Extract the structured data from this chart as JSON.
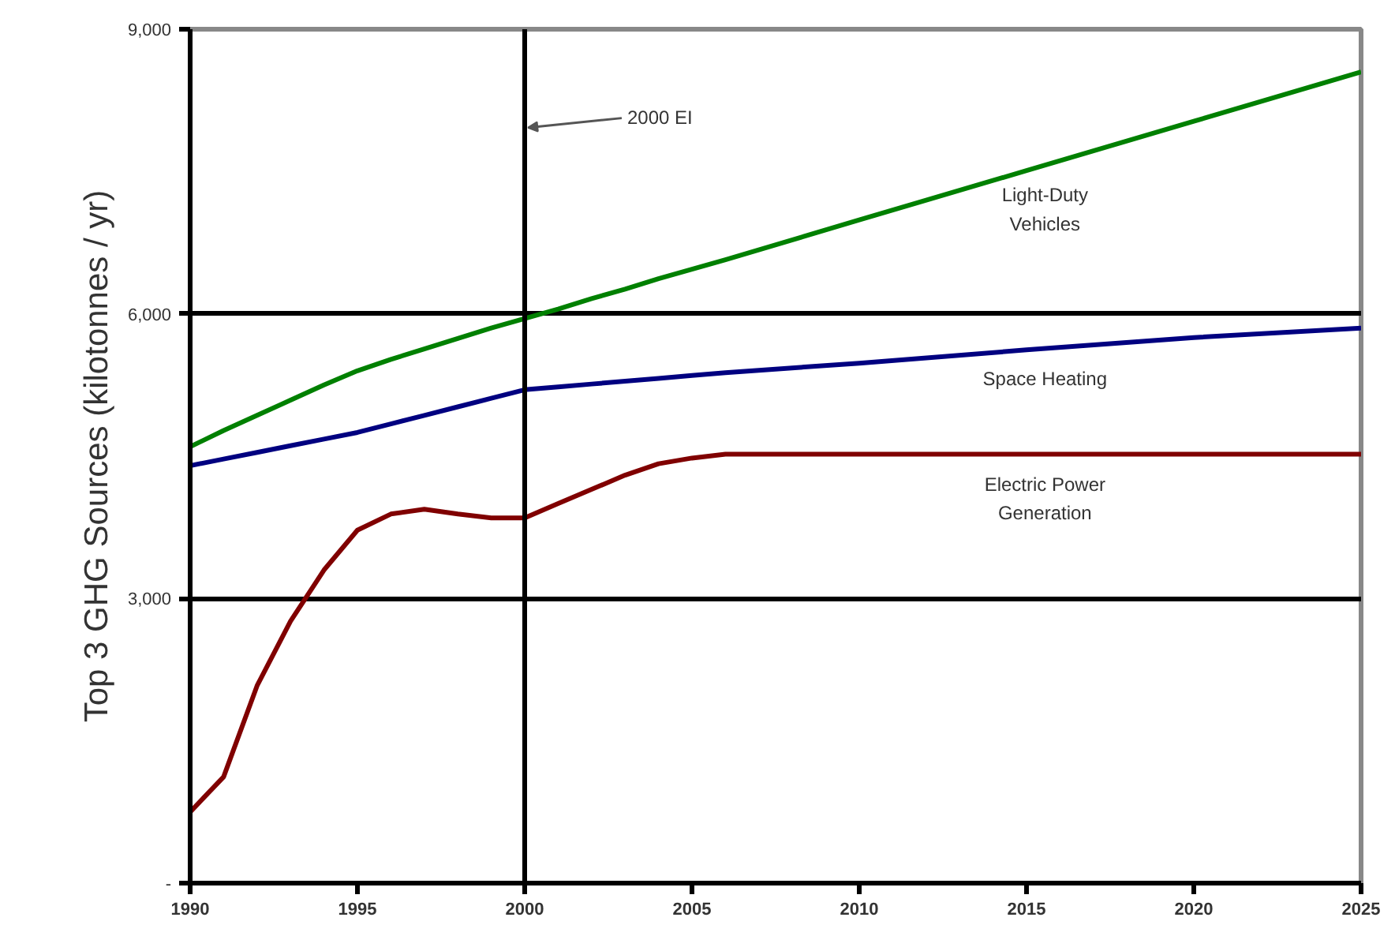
{
  "chart_data": {
    "type": "line",
    "ylabel": "Top 3 GHG Sources (kilotonnes / yr)",
    "x": [
      1990,
      1991,
      1992,
      1993,
      1994,
      1995,
      1996,
      1997,
      1998,
      1999,
      2000,
      2001,
      2002,
      2003,
      2004,
      2005,
      2006,
      2010,
      2015,
      2020,
      2025
    ],
    "series": [
      {
        "name": "Light-Duty Vehicles",
        "color": "#008000",
        "values": [
          4600,
          4770,
          4930,
          5090,
          5250,
          5400,
          5520,
          5630,
          5740,
          5850,
          5950,
          6050,
          6160,
          6260,
          6370,
          6470,
          6570,
          6990,
          7510,
          8030,
          8550
        ]
      },
      {
        "name": "Space Heating",
        "color": "#000080",
        "values": [
          4400,
          4470,
          4540,
          4610,
          4680,
          4750,
          4840,
          4930,
          5020,
          5110,
          5200,
          5230,
          5260,
          5290,
          5320,
          5350,
          5380,
          5480,
          5620,
          5750,
          5850
        ]
      },
      {
        "name": "Electric Power Generation",
        "color": "#800000",
        "values": [
          750,
          1120,
          2080,
          2760,
          3300,
          3720,
          3890,
          3940,
          3890,
          3850,
          3850,
          4000,
          4150,
          4300,
          4420,
          4480,
          4520,
          4520,
          4520,
          4520,
          4520
        ]
      }
    ],
    "xlim": [
      1990,
      2025
    ],
    "xticks": [
      1990,
      1995,
      2000,
      2005,
      2010,
      2015,
      2020,
      2025
    ],
    "ylim": [
      0,
      9000
    ],
    "yticks": [
      {
        "value": 0,
        "label": "-"
      },
      {
        "value": 3000,
        "label": "3,000"
      },
      {
        "value": 6000,
        "label": "6,000"
      },
      {
        "value": 9000,
        "label": "9,000"
      }
    ],
    "ref_lines": [
      {
        "axis": "x",
        "value": 2000,
        "label": "2000 EI",
        "color": "#000000"
      }
    ],
    "grid": "y",
    "legend": false,
    "marker": "none",
    "line_style": "solid"
  }
}
